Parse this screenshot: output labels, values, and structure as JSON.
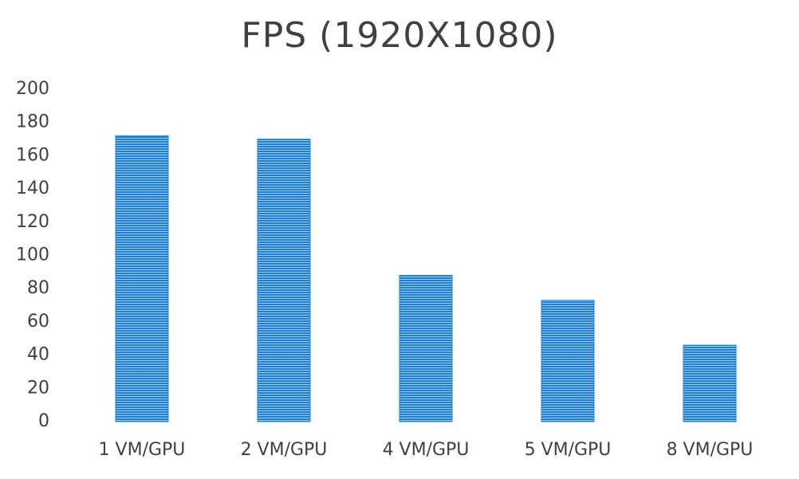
{
  "chart_data": {
    "type": "bar",
    "title": "FPS (1920X1080)",
    "categories": [
      "1 VM/GPU",
      "2 VM/GPU",
      "4 VM/GPU",
      "5 VM/GPU",
      "8 VM/GPU"
    ],
    "values": [
      172,
      170,
      88,
      73,
      46
    ],
    "color": "#1f7fd4",
    "ylim": [
      0,
      200
    ],
    "yticks": [
      0,
      20,
      40,
      60,
      80,
      100,
      120,
      140,
      160,
      180,
      200
    ],
    "grid": false
  }
}
